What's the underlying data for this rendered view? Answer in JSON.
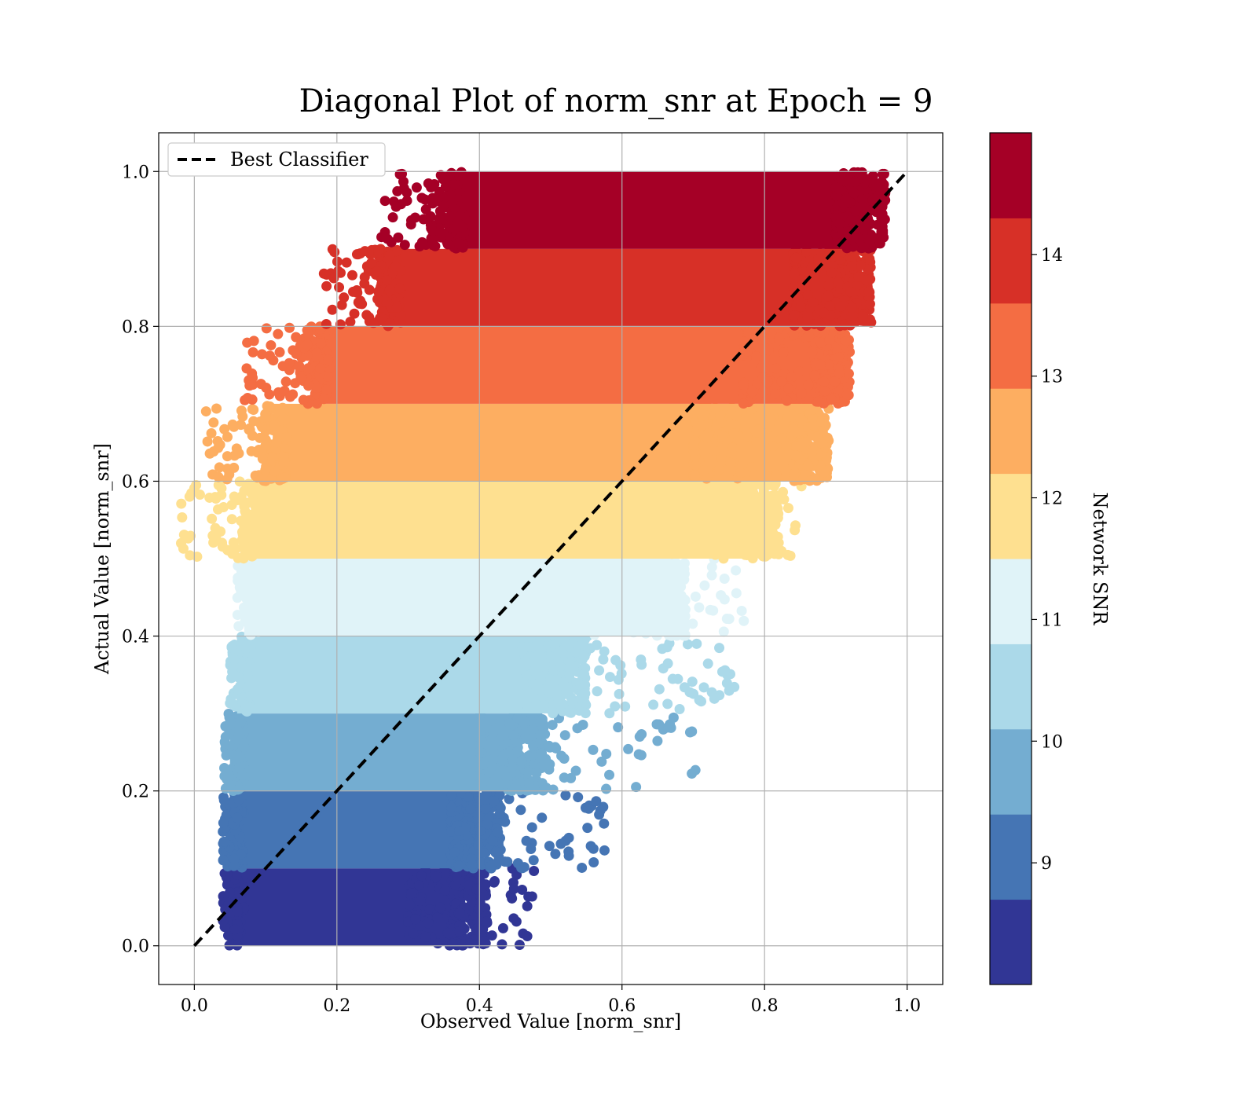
{
  "chart_data": {
    "type": "scatter",
    "title": "Diagonal Plot of norm_snr at Epoch = 9",
    "xlabel": "Observed Value [norm_snr]",
    "ylabel": "Actual Value [norm_snr]",
    "xlim": [
      -0.05,
      1.05
    ],
    "ylim": [
      -0.05,
      1.05
    ],
    "x_ticks": [
      "0.0",
      "0.2",
      "0.4",
      "0.6",
      "0.8",
      "1.0"
    ],
    "y_ticks": [
      "0.0",
      "0.2",
      "0.4",
      "0.6",
      "0.8",
      "1.0"
    ],
    "grid": true,
    "legend": {
      "placement": "top-left",
      "entries": [
        "Best Classifier"
      ]
    },
    "reference_line": {
      "name": "Best Classifier",
      "x": [
        0,
        1
      ],
      "y": [
        0,
        1
      ],
      "style": "dashed",
      "color": "#000000"
    },
    "colorbar": {
      "label": "Network SNR",
      "range": [
        8.0,
        15.0
      ],
      "ticks": [
        "9",
        "10",
        "11",
        "12",
        "13",
        "14"
      ],
      "colors": [
        "#313695",
        "#4575b4",
        "#74add1",
        "#abd9e9",
        "#e0f3f8",
        "#fee090",
        "#fdae61",
        "#f46d43",
        "#d73027",
        "#a50026"
      ]
    },
    "bands": [
      {
        "y_range": [
          0.0,
          0.1
        ],
        "core_x": [
          0.05,
          0.38
        ],
        "spread_x": [
          0.3,
          0.48
        ],
        "color": "#313695"
      },
      {
        "y_range": [
          0.1,
          0.2
        ],
        "core_x": [
          0.05,
          0.4
        ],
        "spread_x": [
          0.36,
          0.59
        ],
        "color": "#4575b4"
      },
      {
        "y_range": [
          0.2,
          0.3
        ],
        "core_x": [
          0.05,
          0.46
        ],
        "spread_x": [
          0.4,
          0.71
        ],
        "color": "#74add1"
      },
      {
        "y_range": [
          0.3,
          0.4
        ],
        "core_x": [
          0.06,
          0.52
        ],
        "spread_x": [
          0.46,
          0.76
        ],
        "color": "#abd9e9"
      },
      {
        "y_range": [
          0.4,
          0.5
        ],
        "core_x": [
          0.07,
          0.66
        ],
        "spread_x": [
          0.56,
          0.78
        ],
        "color": "#e0f3f8"
      },
      {
        "y_range": [
          0.5,
          0.6
        ],
        "core_x": [
          0.08,
          0.79
        ],
        "spread_x": [
          0.66,
          0.86
        ],
        "color": "#fee090"
      },
      {
        "y_range": [
          0.6,
          0.7
        ],
        "core_x": [
          0.11,
          0.86
        ],
        "spread_x": [
          0.7,
          0.88
        ],
        "color": "#fdae61"
      },
      {
        "y_range": [
          0.7,
          0.8
        ],
        "core_x": [
          0.17,
          0.89
        ],
        "spread_x": [
          0.77,
          0.92
        ],
        "color": "#f46d43"
      },
      {
        "y_range": [
          0.8,
          0.9
        ],
        "core_x": [
          0.27,
          0.92
        ],
        "spread_x": [
          0.84,
          0.93
        ],
        "color": "#d73027"
      },
      {
        "y_range": [
          0.9,
          1.0
        ],
        "core_x": [
          0.36,
          0.94
        ],
        "spread_x": [
          0.9,
          0.95
        ],
        "color": "#a50026"
      }
    ]
  }
}
